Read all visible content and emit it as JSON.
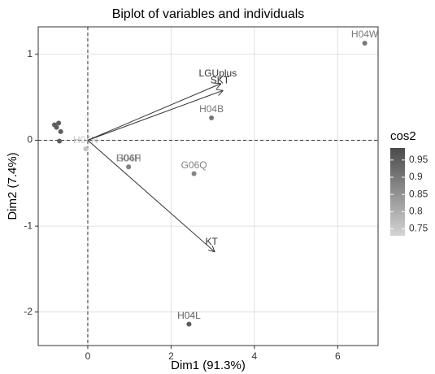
{
  "chart_data": {
    "type": "biplot",
    "title": "Biplot of variables and individuals",
    "x_label": "Dim1 (91.3%)",
    "y_label": "Dim2 (7.4%)",
    "xlim": [
      -1.19,
      6.97
    ],
    "ylim": [
      -2.39,
      1.32
    ],
    "xticks": [
      0,
      2,
      4,
      6
    ],
    "yticks": [
      -2,
      -1,
      0,
      1
    ],
    "grid": true,
    "individuals": {
      "labels": [
        "H04W",
        "H04B",
        "G06Q",
        "H04L",
        "H04H",
        "G06F",
        "H04N",
        null,
        null,
        null,
        null,
        null
      ],
      "x": [
        6.65,
        2.97,
        2.55,
        2.43,
        0.98,
        0.98,
        -0.05,
        -0.7,
        -0.68,
        -0.75,
        -0.8,
        -0.65
      ],
      "y": [
        1.13,
        0.26,
        -0.39,
        -2.14,
        -0.31,
        -0.31,
        -0.1,
        0.2,
        -0.01,
        0.15,
        0.18,
        0.1
      ],
      "cos2": [
        0.9,
        0.9,
        0.88,
        0.95,
        0.88,
        0.88,
        0.76,
        0.95,
        0.95,
        0.95,
        0.95,
        0.95
      ]
    },
    "variables": {
      "labels": [
        "LGUplus",
        "SKT",
        "KT"
      ],
      "x": [
        3.2,
        3.25,
        3.05
      ],
      "y": [
        0.66,
        0.58,
        -1.3
      ]
    },
    "color_legend": {
      "title": "cos2",
      "lim": [
        0.73,
        0.985
      ],
      "ticks": [
        0.75,
        0.8,
        0.85,
        0.9,
        0.95
      ],
      "colors": [
        "#d4d4d4",
        "#4a4a4a"
      ]
    }
  }
}
